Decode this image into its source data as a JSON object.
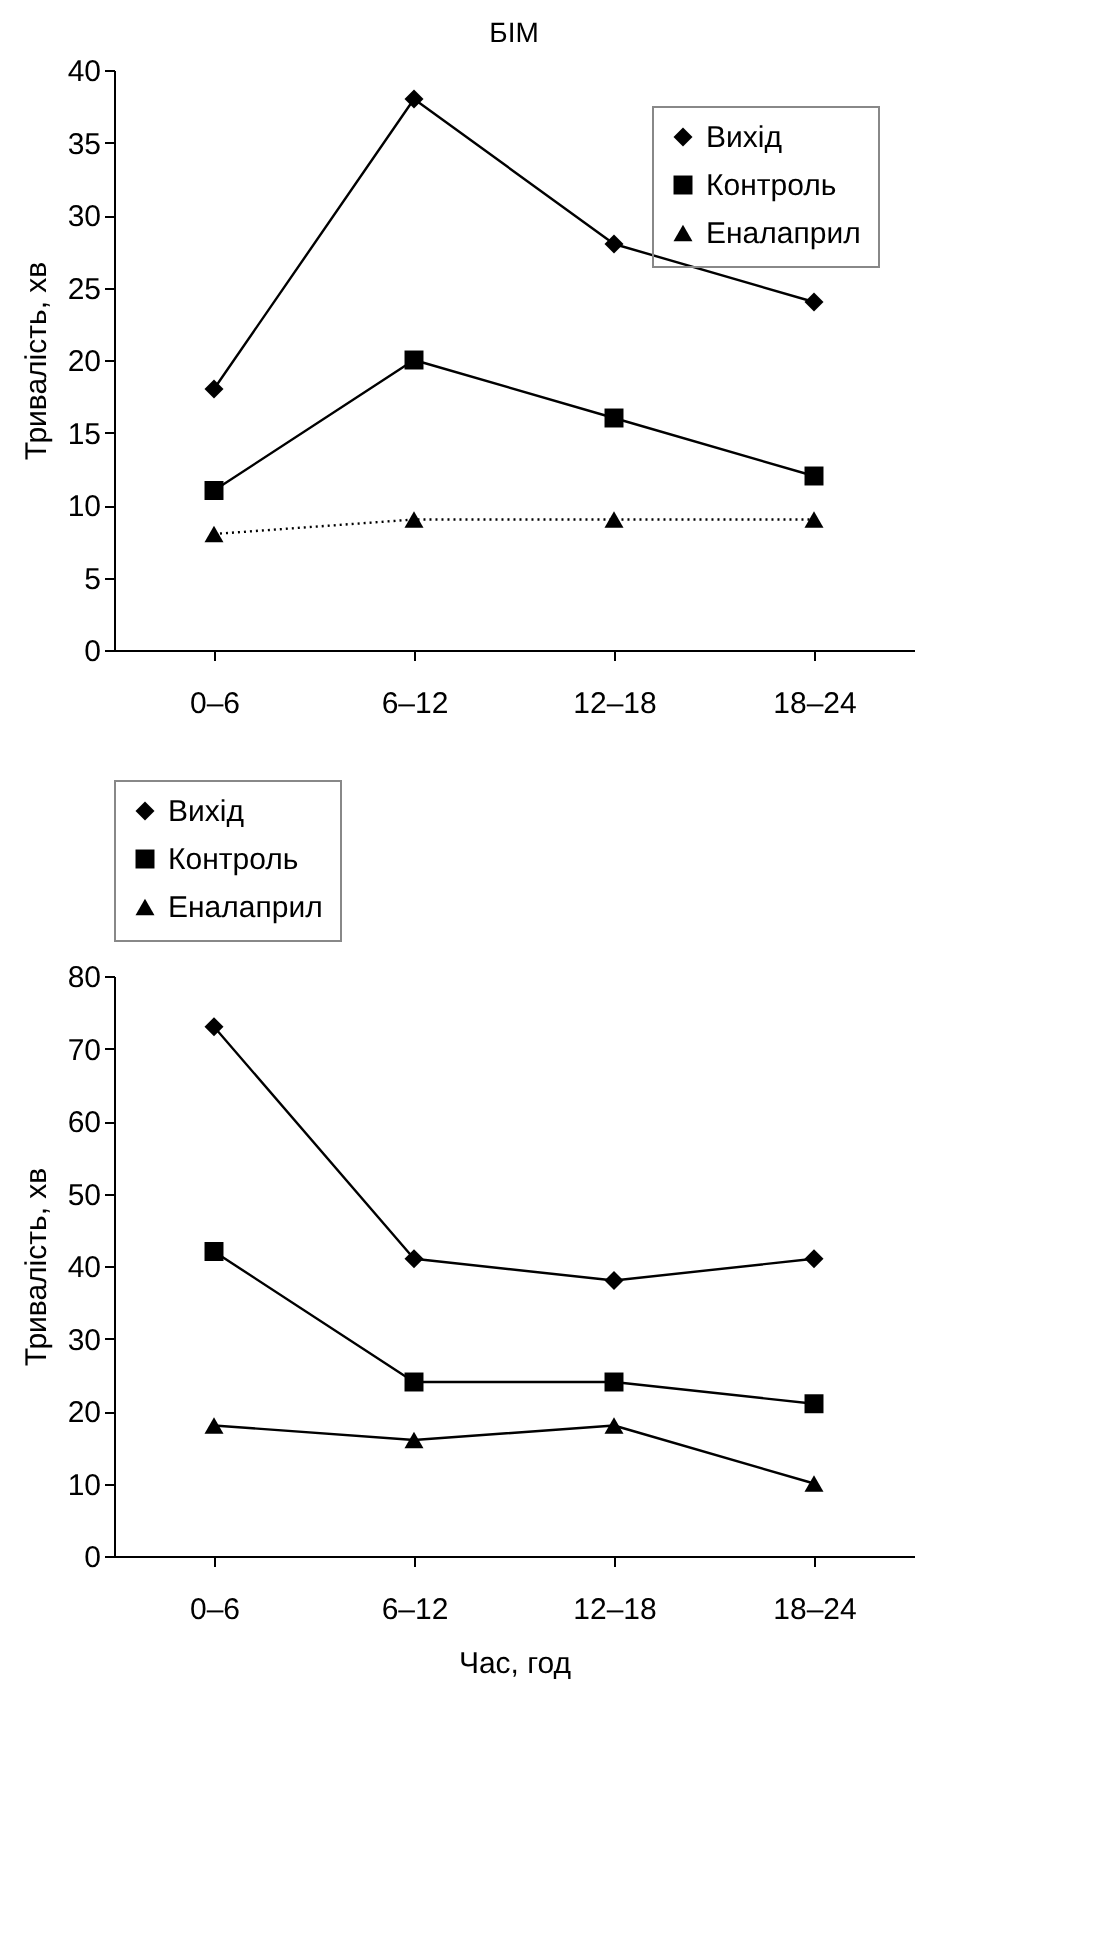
{
  "chart_data": [
    {
      "type": "line",
      "title": "БІМ",
      "ylabel": "Тривалість, хв",
      "categories": [
        "0–6",
        "6–12",
        "12–18",
        "18–24"
      ],
      "ylim": [
        0,
        40
      ],
      "yticks": [
        0,
        5,
        10,
        15,
        20,
        25,
        30,
        35,
        40
      ],
      "grid": false,
      "legend": "top right",
      "series": [
        {
          "name": "Вихід",
          "color": "#000000",
          "marker": "diamond",
          "line_style": "solid",
          "values": [
            18,
            38,
            28,
            24
          ]
        },
        {
          "name": "Контроль",
          "color": "#000000",
          "marker": "square",
          "line_style": "solid",
          "values": [
            11,
            20,
            16,
            12
          ]
        },
        {
          "name": "Еналаприл",
          "color": "#000000",
          "marker": "triangle",
          "line_style": "dotted",
          "values": [
            8,
            9,
            9,
            9
          ]
        }
      ]
    },
    {
      "type": "line",
      "xlabel": "Час, год",
      "ylabel": "Тривалість, хв",
      "categories": [
        "0–6",
        "6–12",
        "12–18",
        "18–24"
      ],
      "ylim": [
        0,
        80
      ],
      "yticks": [
        0,
        10,
        20,
        30,
        40,
        50,
        60,
        70,
        80
      ],
      "grid": false,
      "legend": "top",
      "series": [
        {
          "name": "Вихід",
          "color": "#000000",
          "marker": "diamond",
          "line_style": "solid",
          "values": [
            73,
            41,
            38,
            41
          ]
        },
        {
          "name": "Контроль",
          "color": "#000000",
          "marker": "square",
          "line_style": "solid",
          "values": [
            42,
            24,
            24,
            21
          ]
        },
        {
          "name": "Еналаприл",
          "color": "#000000",
          "marker": "triangle",
          "line_style": "solid",
          "values": [
            18,
            16,
            18,
            10
          ]
        }
      ]
    }
  ]
}
